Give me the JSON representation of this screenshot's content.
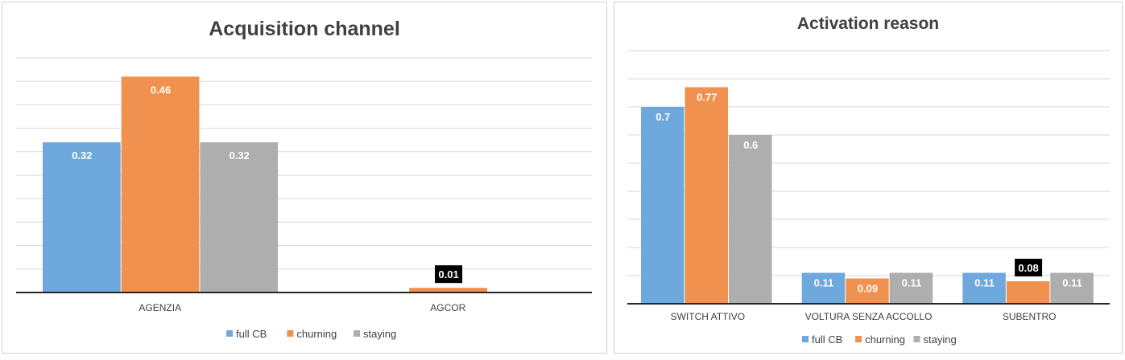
{
  "colors": {
    "full_cb": "#6FA8DC",
    "churning": "#F0914F",
    "staying": "#AEAEAE",
    "gridline": "#D9D9D9",
    "axis": "#262626"
  },
  "chart_data": [
    {
      "type": "bar",
      "title": "Acquisition channel",
      "categories": [
        "AGENZIA",
        "AGCOR"
      ],
      "series": [
        {
          "name": "full CB",
          "values": [
            0.32,
            null
          ],
          "labels": [
            "0.32",
            ""
          ]
        },
        {
          "name": "churning",
          "values": [
            0.46,
            0.01
          ],
          "labels": [
            "0.46",
            "0.01"
          ]
        },
        {
          "name": "staying",
          "values": [
            0.32,
            null
          ],
          "labels": [
            "0.32",
            ""
          ]
        }
      ],
      "ylim": [
        0,
        0.5
      ],
      "grid": true,
      "legend": "bottom"
    },
    {
      "type": "bar",
      "title": "Activation reason",
      "categories": [
        "SWITCH ATTIVO",
        "VOLTURA SENZA ACCOLLO",
        "SUBENTRO"
      ],
      "series": [
        {
          "name": "full CB",
          "values": [
            0.7,
            0.11,
            0.11
          ],
          "labels": [
            "0.7",
            "0.11",
            "0.11"
          ]
        },
        {
          "name": "churning",
          "values": [
            0.77,
            0.09,
            0.08
          ],
          "labels": [
            "0.77",
            "0.09",
            "0.08"
          ]
        },
        {
          "name": "staying",
          "values": [
            0.6,
            0.11,
            0.11
          ],
          "labels": [
            "0.6",
            "0.11",
            "0.11"
          ]
        }
      ],
      "ylim": [
        0,
        0.9
      ],
      "grid": true,
      "legend": "bottom"
    }
  ]
}
